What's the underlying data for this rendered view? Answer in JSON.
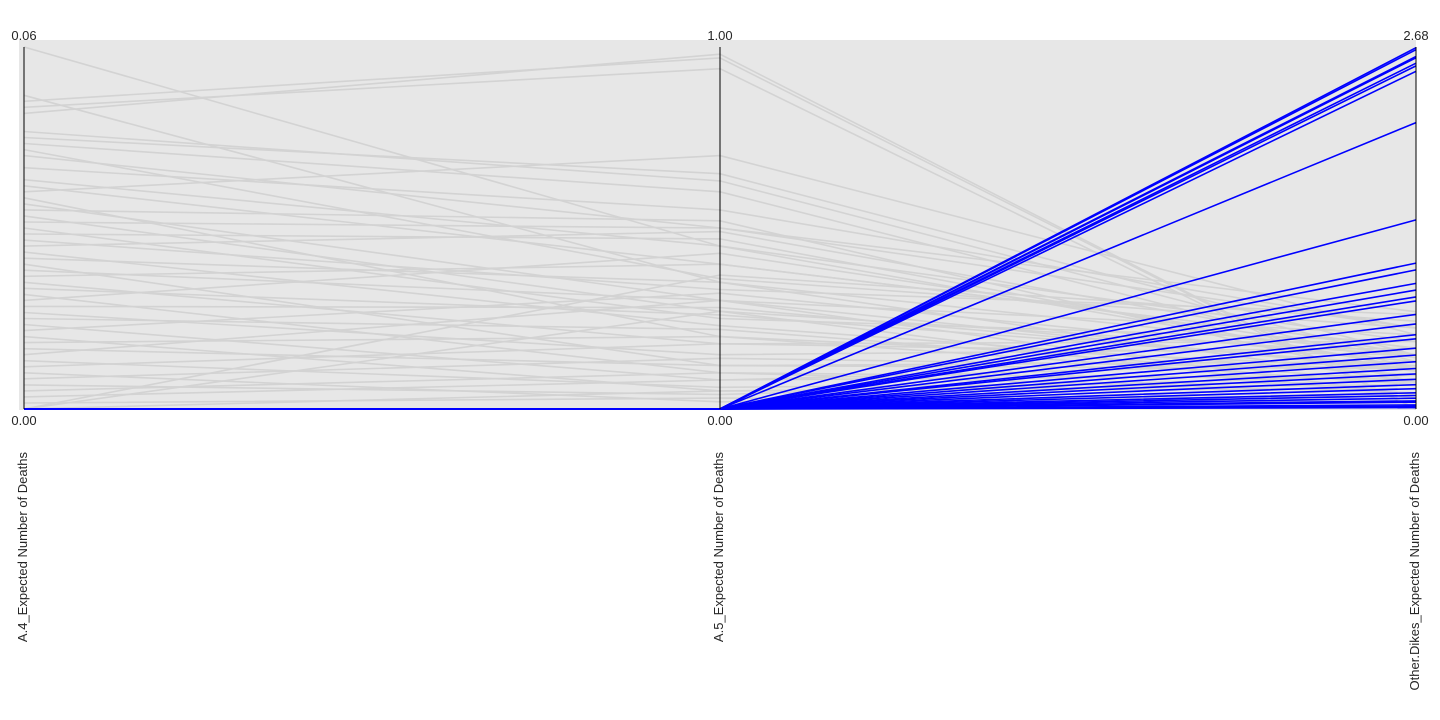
{
  "chart_data": {
    "type": "parallel_coordinates",
    "axes": [
      {
        "label": "A.4_Expected Number of Deaths",
        "min": 0.0,
        "max": 0.06,
        "min_label": "0.00",
        "max_label": "0.06"
      },
      {
        "label": "A.5_Expected Number of Deaths",
        "min": 0.0,
        "max": 1.0,
        "min_label": "0.00",
        "max_label": "1.00"
      },
      {
        "label": "Other.Dikes_Expected Number of Deaths",
        "min": 0.0,
        "max": 2.68,
        "min_label": "0.00",
        "max_label": "2.68"
      }
    ],
    "colors": {
      "background_lines": "#d3d3d3",
      "highlight_lines": "#0000ff",
      "axis": "#000000"
    },
    "grid": false,
    "series": [
      {
        "highlighted": true,
        "lines": [
          [
            0,
            0,
            2.675
          ],
          [
            0,
            0,
            2.66
          ],
          [
            0,
            0,
            2.61
          ],
          [
            0,
            0,
            2.6
          ],
          [
            0,
            0,
            2.56
          ],
          [
            0,
            0,
            2.54
          ],
          [
            0,
            0,
            2.5
          ],
          [
            0,
            0,
            2.12
          ],
          [
            0,
            0,
            1.4
          ],
          [
            0,
            0,
            1.08
          ],
          [
            0,
            0,
            1.03
          ],
          [
            0,
            0,
            0.93
          ],
          [
            0,
            0,
            0.88
          ],
          [
            0,
            0,
            0.83
          ],
          [
            0,
            0,
            0.8
          ],
          [
            0,
            0,
            0.7
          ],
          [
            0,
            0,
            0.63
          ],
          [
            0,
            0,
            0.55
          ],
          [
            0,
            0,
            0.52
          ],
          [
            0,
            0,
            0.45
          ],
          [
            0,
            0,
            0.4
          ],
          [
            0,
            0,
            0.35
          ],
          [
            0,
            0,
            0.3
          ],
          [
            0,
            0,
            0.26
          ],
          [
            0,
            0,
            0.22
          ],
          [
            0,
            0,
            0.18
          ],
          [
            0,
            0,
            0.15
          ],
          [
            0,
            0,
            0.12
          ],
          [
            0,
            0,
            0.1
          ],
          [
            0,
            0,
            0.08
          ],
          [
            0,
            0,
            0.06
          ],
          [
            0,
            0,
            0.05
          ],
          [
            0,
            0,
            0.03
          ],
          [
            0,
            0,
            0.02
          ],
          [
            0,
            0,
            0.01
          ]
        ]
      },
      {
        "highlighted": false,
        "lines": [
          [
            0.06,
            0.45,
            0.3
          ],
          [
            0.052,
            0.35,
            0.2
          ],
          [
            0.05,
            0.94,
            0.0
          ],
          [
            0.051,
            0.97,
            0.0
          ],
          [
            0.049,
            0.98,
            0.0
          ],
          [
            0.045,
            0.65,
            0.4
          ],
          [
            0.044,
            0.6,
            0.3
          ],
          [
            0.046,
            0.63,
            0.35
          ],
          [
            0.043,
            0.36,
            0.6
          ],
          [
            0.042,
            0.5,
            0.72
          ],
          [
            0.04,
            0.55,
            0.6
          ],
          [
            0.038,
            0.45,
            0.5
          ],
          [
            0.037,
            0.4,
            0.45
          ],
          [
            0.036,
            0.7,
            0.55
          ],
          [
            0.035,
            0.2,
            0.3
          ],
          [
            0.034,
            0.3,
            0.55
          ],
          [
            0.033,
            0.52,
            0.2
          ],
          [
            0.032,
            0.27,
            0.4
          ],
          [
            0.031,
            0.5,
            0.6
          ],
          [
            0.03,
            0.25,
            0.5
          ],
          [
            0.029,
            0.47,
            0.3
          ],
          [
            0.028,
            0.33,
            0.7
          ],
          [
            0.027,
            0.49,
            0.4
          ],
          [
            0.026,
            0.23,
            0.25
          ],
          [
            0.025,
            0.35,
            0.4
          ],
          [
            0.024,
            0.12,
            0.35
          ],
          [
            0.023,
            0.3,
            0.28
          ],
          [
            0.022,
            0.4,
            0.45
          ],
          [
            0.021,
            0.18,
            0.5
          ],
          [
            0.02,
            0.26,
            0.32
          ],
          [
            0.019,
            0.1,
            0.22
          ],
          [
            0.018,
            0.43,
            0.38
          ],
          [
            0.017,
            0.28,
            0.3
          ],
          [
            0.016,
            0.15,
            0.45
          ],
          [
            0.015,
            0.22,
            0.2
          ],
          [
            0.014,
            0.08,
            0.25
          ],
          [
            0.013,
            0.32,
            0.35
          ],
          [
            0.012,
            0.05,
            0.15
          ],
          [
            0.011,
            0.2,
            0.18
          ],
          [
            0.01,
            0.12,
            0.3
          ],
          [
            0.009,
            0.3,
            0.1
          ],
          [
            0.008,
            0.06,
            0.2
          ],
          [
            0.007,
            0.18,
            0.4
          ],
          [
            0.006,
            0.02,
            0.1
          ],
          [
            0.005,
            0.14,
            0.3
          ],
          [
            0.004,
            0.04,
            0.25
          ],
          [
            0.003,
            0.1,
            0.12
          ],
          [
            0.002,
            0.08,
            0.35
          ],
          [
            0.001,
            0.03,
            0.05
          ],
          [
            0.0,
            0.05,
            0.18
          ],
          [
            0.0,
            0.27,
            0.08
          ],
          [
            0.0,
            0.37,
            0.65
          ]
        ]
      }
    ]
  }
}
